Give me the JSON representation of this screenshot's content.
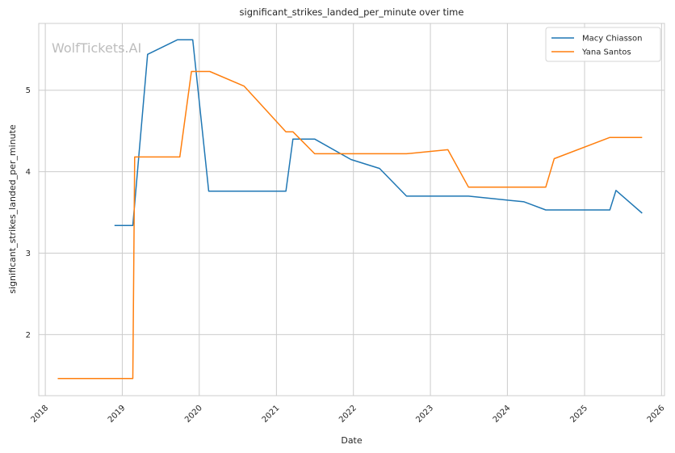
{
  "watermark": "WolfTickets.AI",
  "colors": {
    "macy": "#1f77b4",
    "yana": "#ff7f0e",
    "grid": "#cccccc",
    "spine": "#cccccc"
  },
  "chart_data": {
    "type": "line",
    "title": "significant_strikes_landed_per_minute over time",
    "xlabel": "Date",
    "ylabel": "significant_strikes_landed_per_minute",
    "x_ticks": [
      "2018",
      "2019",
      "2020",
      "2021",
      "2022",
      "2023",
      "2024",
      "2025",
      "2026"
    ],
    "y_ticks": [
      "2",
      "3",
      "4",
      "5"
    ],
    "xlim": [
      "2017-12-01",
      "2026-01-15"
    ],
    "ylim": [
      1.25,
      5.82
    ],
    "grid": true,
    "legend": "top-right",
    "series": [
      {
        "name": "Macy Chiasson",
        "color": "#1f77b4",
        "points": [
          [
            "2018-11-25",
            3.34
          ],
          [
            "2019-02-20",
            3.34
          ],
          [
            "2019-05-01",
            5.44
          ],
          [
            "2019-09-20",
            5.62
          ],
          [
            "2019-12-01",
            5.62
          ],
          [
            "2020-02-15",
            3.76
          ],
          [
            "2021-02-15",
            3.76
          ],
          [
            "2021-03-20",
            4.4
          ],
          [
            "2021-07-01",
            4.4
          ],
          [
            "2021-12-20",
            4.15
          ],
          [
            "2022-05-05",
            4.04
          ],
          [
            "2022-09-10",
            3.7
          ],
          [
            "2023-07-01",
            3.7
          ],
          [
            "2024-03-20",
            3.63
          ],
          [
            "2024-07-01",
            3.53
          ],
          [
            "2025-05-01",
            3.53
          ],
          [
            "2025-05-30",
            3.77
          ],
          [
            "2025-10-01",
            3.49
          ]
        ]
      },
      {
        "name": "Yana Santos",
        "color": "#ff7f0e",
        "points": [
          [
            "2018-03-01",
            1.46
          ],
          [
            "2019-02-20",
            1.46
          ],
          [
            "2019-03-01",
            4.18
          ],
          [
            "2019-10-01",
            4.18
          ],
          [
            "2019-11-25",
            5.23
          ],
          [
            "2020-02-20",
            5.23
          ],
          [
            "2020-08-01",
            5.05
          ],
          [
            "2021-02-15",
            4.49
          ],
          [
            "2021-03-20",
            4.49
          ],
          [
            "2021-07-01",
            4.22
          ],
          [
            "2022-09-10",
            4.22
          ],
          [
            "2023-03-25",
            4.27
          ],
          [
            "2023-07-01",
            3.81
          ],
          [
            "2024-07-01",
            3.81
          ],
          [
            "2024-08-10",
            4.16
          ],
          [
            "2025-05-01",
            4.42
          ],
          [
            "2025-10-01",
            4.42
          ]
        ]
      }
    ]
  }
}
